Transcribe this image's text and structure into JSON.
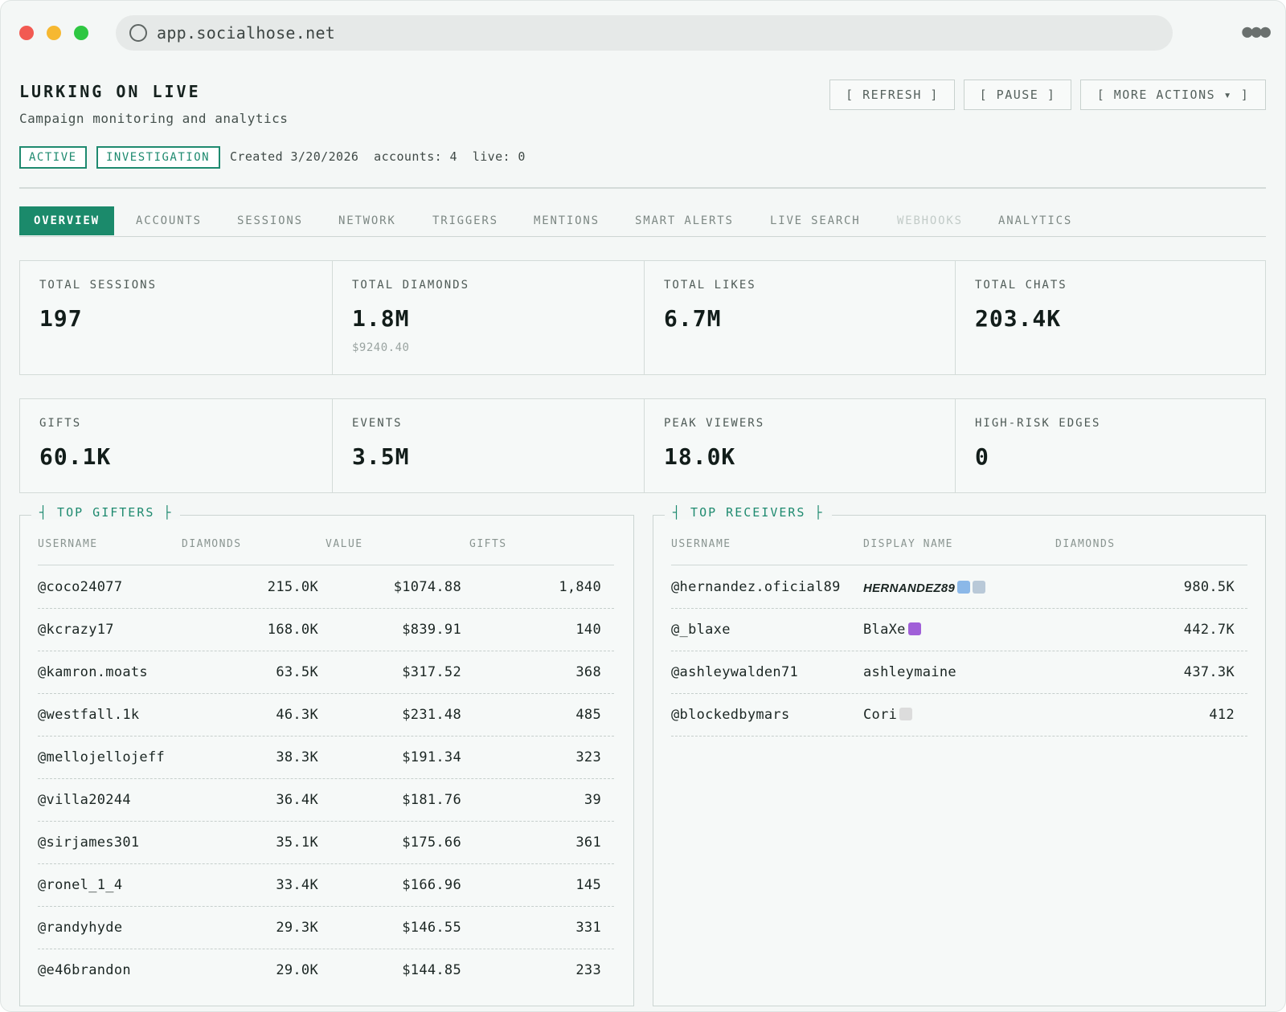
{
  "browser": {
    "url": "app.socialhose.net"
  },
  "header": {
    "title": "LURKING ON LIVE",
    "subtitle": "Campaign monitoring and analytics",
    "tags": [
      "ACTIVE",
      "INVESTIGATION"
    ],
    "meta": "Created 3/20/2026  accounts: 4  live: 0",
    "buttons": {
      "refresh": "[ REFRESH ]",
      "pause": "[ PAUSE ]",
      "more": "[ MORE ACTIONS ▾ ]"
    }
  },
  "tabs": [
    "OVERVIEW",
    "ACCOUNTS",
    "SESSIONS",
    "NETWORK",
    "TRIGGERS",
    "MENTIONS",
    "SMART ALERTS",
    "LIVE SEARCH",
    "WEBHOOKS",
    "ANALYTICS"
  ],
  "stats": {
    "total_sessions": {
      "label": "TOTAL SESSIONS",
      "value": "197"
    },
    "total_diamonds": {
      "label": "TOTAL DIAMONDS",
      "value": "1.8M",
      "sub": "$9240.40"
    },
    "total_likes": {
      "label": "TOTAL LIKES",
      "value": "6.7M"
    },
    "total_chats": {
      "label": "TOTAL CHATS",
      "value": "203.4K"
    },
    "gifts": {
      "label": "GIFTS",
      "value": "60.1K"
    },
    "events": {
      "label": "EVENTS",
      "value": "3.5M"
    },
    "peak_viewers": {
      "label": "PEAK VIEWERS",
      "value": "18.0K"
    },
    "high_risk_edges": {
      "label": "HIGH-RISK EDGES",
      "value": "0"
    }
  },
  "top_gifters": {
    "title": "┤ TOP GIFTERS ├",
    "columns": [
      "USERNAME",
      "DIAMONDS",
      "VALUE",
      "GIFTS"
    ],
    "rows": [
      [
        "@coco24077",
        "215.0K",
        "$1074.88",
        "1,840"
      ],
      [
        "@kcrazy17",
        "168.0K",
        "$839.91",
        "140"
      ],
      [
        "@kamron.moats",
        "63.5K",
        "$317.52",
        "368"
      ],
      [
        "@westfall.1k",
        "46.3K",
        "$231.48",
        "485"
      ],
      [
        "@mellojellojeff",
        "38.3K",
        "$191.34",
        "323"
      ],
      [
        "@villa20244",
        "36.4K",
        "$181.76",
        "39"
      ],
      [
        "@sirjames301",
        "35.1K",
        "$175.66",
        "361"
      ],
      [
        "@ronel_1_4",
        "33.4K",
        "$166.96",
        "145"
      ],
      [
        "@randyhyde",
        "29.3K",
        "$146.55",
        "331"
      ],
      [
        "@e46brandon",
        "29.0K",
        "$144.85",
        "233"
      ]
    ]
  },
  "top_receivers": {
    "title": "┤ TOP RECEIVERS ├",
    "columns": [
      "USERNAME",
      "DISPLAY NAME",
      "DIAMONDS"
    ],
    "rows": [
      [
        "@hernandez.oficial89",
        "HERNANDEZ89",
        "980.5K"
      ],
      [
        "@_blaxe",
        "BlaXe",
        "442.7K"
      ],
      [
        "@ashleywalden71",
        "ashleymaine",
        "437.3K"
      ],
      [
        "@blockedbymars",
        "Cori",
        "412"
      ]
    ]
  },
  "colors": {
    "accent": "#1b8a6b",
    "background": "#f4f7f6",
    "border": "#d3dbd8"
  }
}
